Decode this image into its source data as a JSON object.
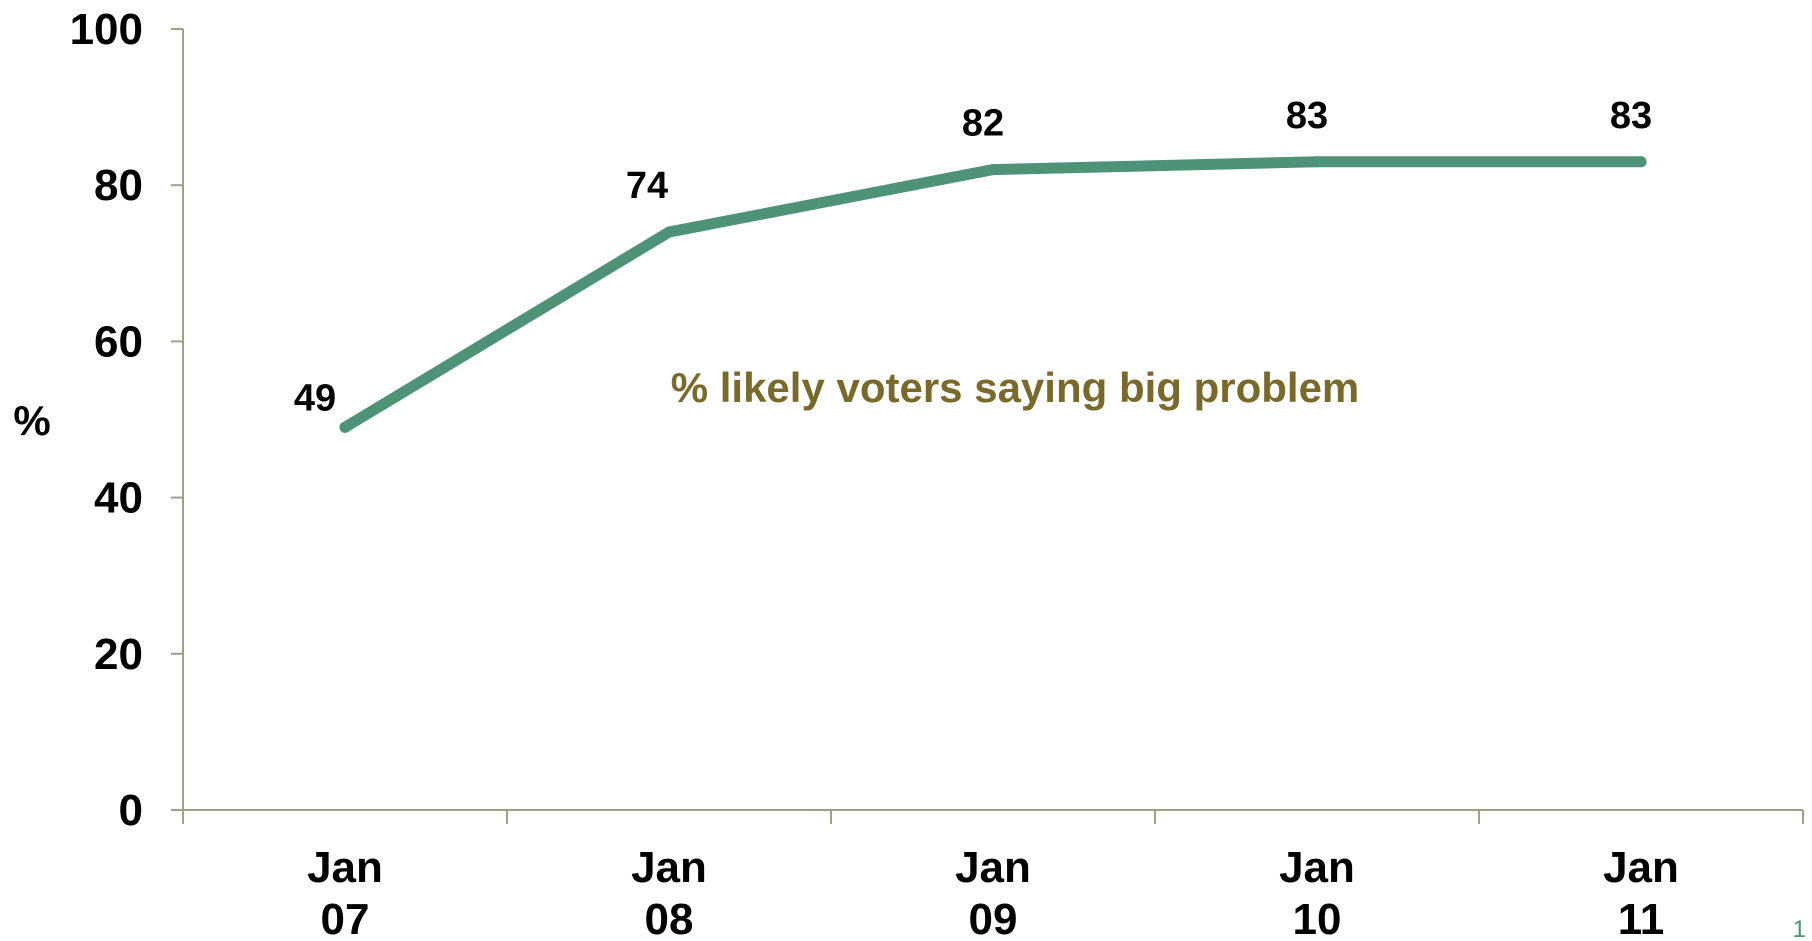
{
  "chart_data": {
    "type": "line",
    "categories": [
      "Jan 07",
      "Jan 08",
      "Jan 09",
      "Jan 10",
      "Jan 11"
    ],
    "category_lines": [
      [
        "Jan",
        "07"
      ],
      [
        "Jan",
        "08"
      ],
      [
        "Jan",
        "09"
      ],
      [
        "Jan",
        "10"
      ],
      [
        "Jan",
        "11"
      ]
    ],
    "series": [
      {
        "values": [
          49,
          74,
          82,
          83,
          83
        ],
        "color": "#4e9278"
      }
    ],
    "data_labels": [
      "49",
      "74",
      "82",
      "83",
      "83"
    ],
    "ylabel": "%",
    "ylim": [
      0,
      100
    ],
    "yticks": [
      0,
      20,
      40,
      60,
      80,
      100
    ],
    "ytick_labels": [
      "0",
      "20",
      "40",
      "60",
      "80",
      "100"
    ],
    "annotation": "% likely voters saying big problem",
    "annotation_color": "#7a6a2a",
    "axis_color": "#a19f86",
    "grid": false,
    "legend": "none"
  },
  "page_number": "1",
  "page_number_color": "#4e9278"
}
